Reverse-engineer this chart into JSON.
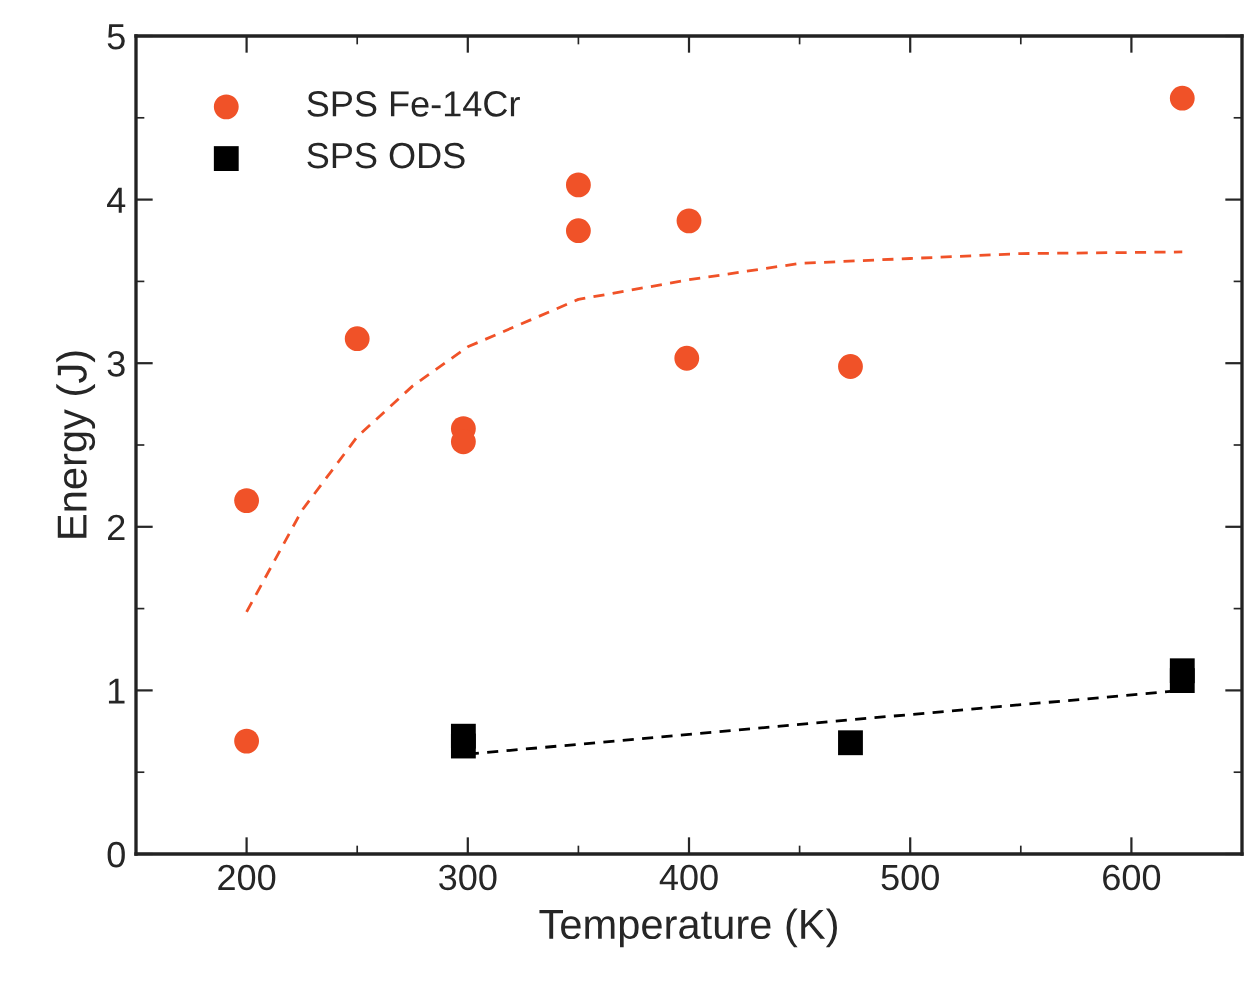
{
  "chart_data": {
    "type": "scatter",
    "xlabel": "Temperature (K)",
    "ylabel": "Energy (J)",
    "xlim": [
      150,
      650
    ],
    "xticks": [
      200,
      300,
      400,
      500,
      600
    ],
    "ylim": [
      0,
      5
    ],
    "yticks": [
      0,
      1,
      2,
      3,
      4,
      5
    ],
    "legend": "top left",
    "grid": false,
    "series": [
      {
        "name": "SPS Fe-14Cr",
        "color": "#f05228",
        "marker": "circle",
        "x": [
          200,
          200,
          250,
          298,
          298,
          350,
          350,
          400,
          399,
          473,
          623
        ],
        "values": [
          2.16,
          0.69,
          3.15,
          2.6,
          2.52,
          4.09,
          3.81,
          3.87,
          3.03,
          2.98,
          4.62
        ]
      },
      {
        "name": "SPS ODS",
        "color": "#000000",
        "marker": "square",
        "x": [
          298,
          298,
          473,
          623,
          623
        ],
        "values": [
          0.72,
          0.66,
          0.68,
          1.12,
          1.06
        ]
      },
      {
        "type": "line",
        "color": "#f05228",
        "line_style": "dashed",
        "x": [
          200,
          225,
          250,
          275,
          300,
          350,
          400,
          450,
          500,
          550,
          623
        ],
        "values": [
          1.48,
          2.1,
          2.55,
          2.86,
          3.1,
          3.39,
          3.51,
          3.61,
          3.64,
          3.67,
          3.68
        ]
      },
      {
        "type": "line",
        "color": "#000000",
        "line_style": "dashed",
        "x": [
          300,
          473,
          623
        ],
        "values": [
          0.61,
          0.82,
          1.0
        ]
      }
    ]
  }
}
